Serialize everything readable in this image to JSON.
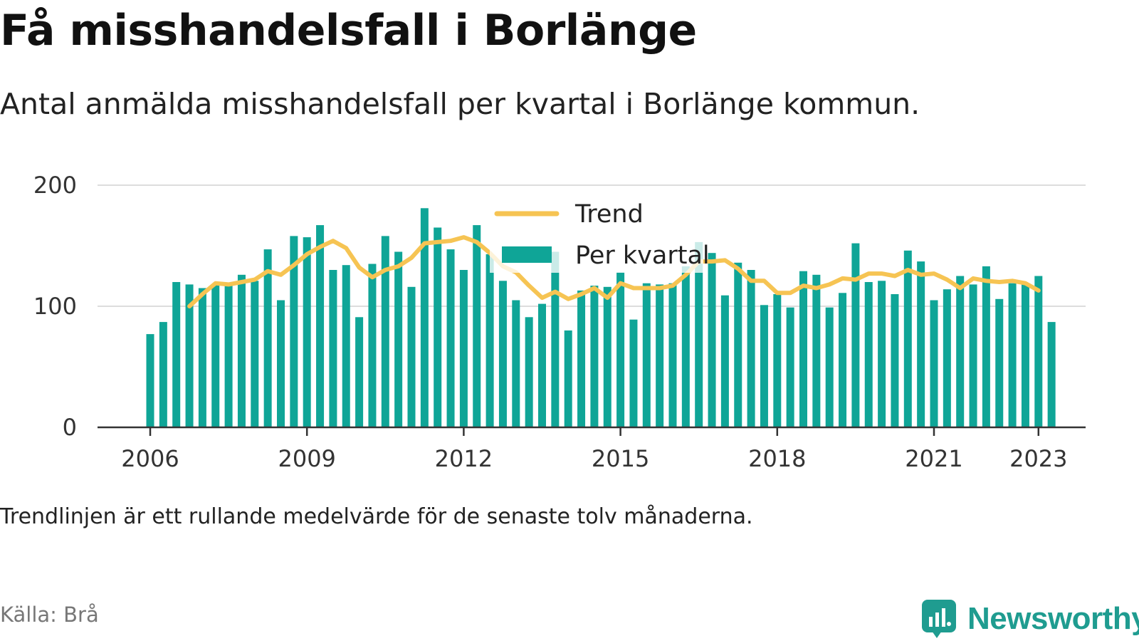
{
  "header": {
    "title": "Få misshandelsfall i Borlänge",
    "subtitle": "Antal anmälda misshandelsfall per kvartal i Borlänge kommun."
  },
  "footer": {
    "note": "Trendlinjen är ett rullande medelvärde för de senaste tolv månaderna.",
    "source": "Källa: Brå",
    "brand": "Newsworthy"
  },
  "colors": {
    "bar": "#0fa597",
    "trend": "#f6c453",
    "grid": "#dddddd",
    "axis": "#333333",
    "brand": "#1f9c90"
  },
  "chart_data": {
    "type": "bar",
    "ylim": [
      0,
      200
    ],
    "yticks": [
      0,
      100,
      200
    ],
    "xtick_years": [
      "2006",
      "2009",
      "2012",
      "2015",
      "2018",
      "2021",
      "2023"
    ],
    "start_year": 2006,
    "end_year": 2023,
    "grid": true,
    "legend_placement": "top-center",
    "series": [
      {
        "name": "Per kvartal",
        "kind": "bar",
        "values": [
          77,
          87,
          120,
          118,
          115,
          118,
          118,
          126,
          121,
          147,
          105,
          158,
          157,
          167,
          130,
          134,
          91,
          135,
          158,
          145,
          116,
          181,
          165,
          147,
          130,
          167,
          143,
          121,
          105,
          91,
          102,
          145,
          80,
          113,
          117,
          116,
          128,
          89,
          119,
          118,
          119,
          133,
          153,
          144,
          109,
          136,
          130,
          101,
          110,
          99,
          129,
          126,
          99,
          111,
          152,
          120,
          121,
          110,
          146,
          137,
          105,
          114,
          125,
          118,
          133,
          106,
          119,
          119,
          125,
          87
        ]
      },
      {
        "name": "Trend",
        "kind": "line",
        "start_index": 3,
        "values": [
          100,
          110,
          119,
          118,
          120,
          122,
          129,
          126,
          134,
          143,
          149,
          154,
          148,
          132,
          124,
          130,
          133,
          140,
          152,
          153,
          154,
          157,
          153,
          144,
          133,
          128,
          117,
          107,
          112,
          106,
          110,
          115,
          107,
          119,
          115,
          115,
          115,
          117,
          126,
          137,
          137,
          138,
          131,
          121,
          121,
          111,
          111,
          117,
          115,
          118,
          123,
          122,
          127,
          127,
          125,
          130,
          126,
          127,
          122,
          115,
          123,
          121,
          120,
          121,
          119,
          113
        ]
      }
    ]
  }
}
